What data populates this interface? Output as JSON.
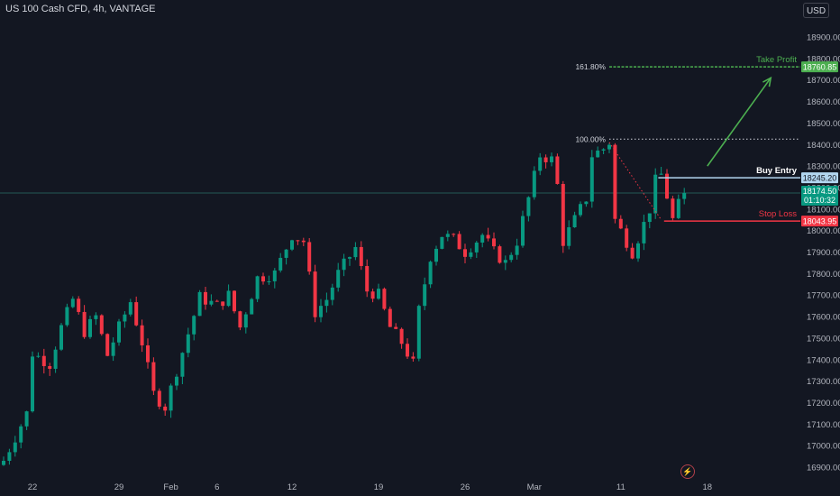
{
  "header": {
    "symbol_title": "US 100 Cash CFD, 4h, VANTAGE",
    "currency_button": "USD"
  },
  "colors": {
    "background": "#131722",
    "up": "#089981",
    "down": "#f23645",
    "text": "#d1d4dc",
    "take_profit": "#4caf50",
    "stop_loss": "#f23645",
    "entry": "#b2d6f0"
  },
  "icons": {
    "replay": "lightning-icon"
  },
  "chart_data": {
    "type": "candlestick",
    "title": "US 100 Cash CFD, 4h, VANTAGE",
    "ylim": [
      16850,
      19000
    ],
    "y_ticks": [
      16900,
      17000,
      17100,
      17200,
      17300,
      17400,
      17500,
      17600,
      17700,
      17800,
      17900,
      18000,
      18100,
      18200,
      18300,
      18400,
      18500,
      18600,
      18700,
      18800,
      18900
    ],
    "x_labels": [
      {
        "label": "22",
        "bar": 5
      },
      {
        "label": "29",
        "bar": 20
      },
      {
        "label": "Feb",
        "bar": 29
      },
      {
        "label": "6",
        "bar": 37
      },
      {
        "label": "12",
        "bar": 50
      },
      {
        "label": "19",
        "bar": 65
      },
      {
        "label": "26",
        "bar": 80
      },
      {
        "label": "Mar",
        "bar": 92
      },
      {
        "label": "11",
        "bar": 107
      },
      {
        "label": "18",
        "bar": 122
      }
    ],
    "price_points": [
      [
        0,
        16930
      ],
      [
        4,
        17150
      ],
      [
        5,
        17430
      ],
      [
        8,
        17380
      ],
      [
        10,
        17550
      ],
      [
        12,
        17680
      ],
      [
        14,
        17530
      ],
      [
        16,
        17600
      ],
      [
        18,
        17420
      ],
      [
        20,
        17550
      ],
      [
        22,
        17670
      ],
      [
        24,
        17480
      ],
      [
        26,
        17240
      ],
      [
        28,
        17180
      ],
      [
        30,
        17350
      ],
      [
        32,
        17520
      ],
      [
        34,
        17690
      ],
      [
        37,
        17650
      ],
      [
        39,
        17700
      ],
      [
        41,
        17550
      ],
      [
        44,
        17780
      ],
      [
        47,
        17800
      ],
      [
        50,
        17980
      ],
      [
        52,
        17950
      ],
      [
        54,
        17620
      ],
      [
        56,
        17680
      ],
      [
        58,
        17800
      ],
      [
        61,
        17920
      ],
      [
        63,
        17720
      ],
      [
        65,
        17700
      ],
      [
        67,
        17550
      ],
      [
        69,
        17480
      ],
      [
        71,
        17380
      ],
      [
        72,
        17630
      ],
      [
        74,
        17880
      ],
      [
        76,
        17980
      ],
      [
        78,
        17960
      ],
      [
        80,
        17900
      ],
      [
        83,
        17980
      ],
      [
        85,
        17900
      ],
      [
        87,
        17850
      ],
      [
        89,
        17950
      ],
      [
        91,
        18150
      ],
      [
        93,
        18350
      ],
      [
        95,
        18330
      ],
      [
        96,
        18210
      ],
      [
        97,
        17950
      ],
      [
        99,
        18050
      ],
      [
        101,
        18150
      ],
      [
        102,
        18350
      ],
      [
        104,
        18380
      ],
      [
        105,
        18410
      ],
      [
        106,
        18050
      ],
      [
        108,
        17950
      ],
      [
        109,
        17900
      ],
      [
        111,
        18030
      ],
      [
        112,
        18100
      ],
      [
        113,
        18230
      ],
      [
        114,
        18260
      ],
      [
        115,
        18160
      ],
      [
        116,
        18050
      ],
      [
        117,
        18120
      ],
      [
        118,
        18174.5
      ]
    ],
    "last_bar": 118,
    "last_price": 18174.5,
    "countdown": "01:10:32",
    "levels": {
      "take_profit": {
        "label": "Take Profit",
        "price": 18760.85,
        "fib": "161.80%"
      },
      "fib_100": {
        "label": "100.00%",
        "price": 18425
      },
      "buy_entry": {
        "label": "Buy Entry",
        "price": 18245.2
      },
      "stop_loss": {
        "label": "Stop Loss",
        "price": 18043.95
      }
    },
    "arrow": {
      "from": [
        122,
        18300
      ],
      "to": [
        133,
        18710
      ]
    },
    "fib_swing": {
      "from": [
        105,
        18410
      ],
      "to": [
        114,
        18050
      ]
    }
  }
}
